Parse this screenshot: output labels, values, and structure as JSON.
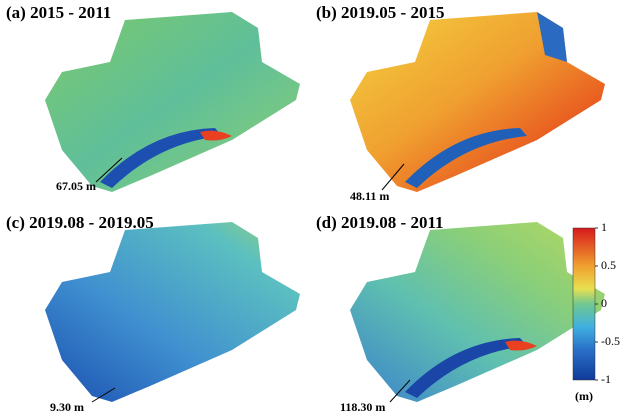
{
  "panels": [
    {
      "label": "(a) 2015 - 2011",
      "annotation": "67.05 m"
    },
    {
      "label": "(b) 2019.05 - 2015",
      "annotation": "48.11 m"
    },
    {
      "label": "(c) 2019.08 - 2019.05",
      "annotation": "9.30 m"
    },
    {
      "label": "(d) 2019.08 - 2011",
      "annotation": "118.30 m"
    }
  ],
  "colorbar": {
    "lim": [
      -1,
      1
    ],
    "ticks": [
      1,
      0.5,
      0,
      -0.5,
      -1
    ],
    "unit": "(m)"
  }
}
